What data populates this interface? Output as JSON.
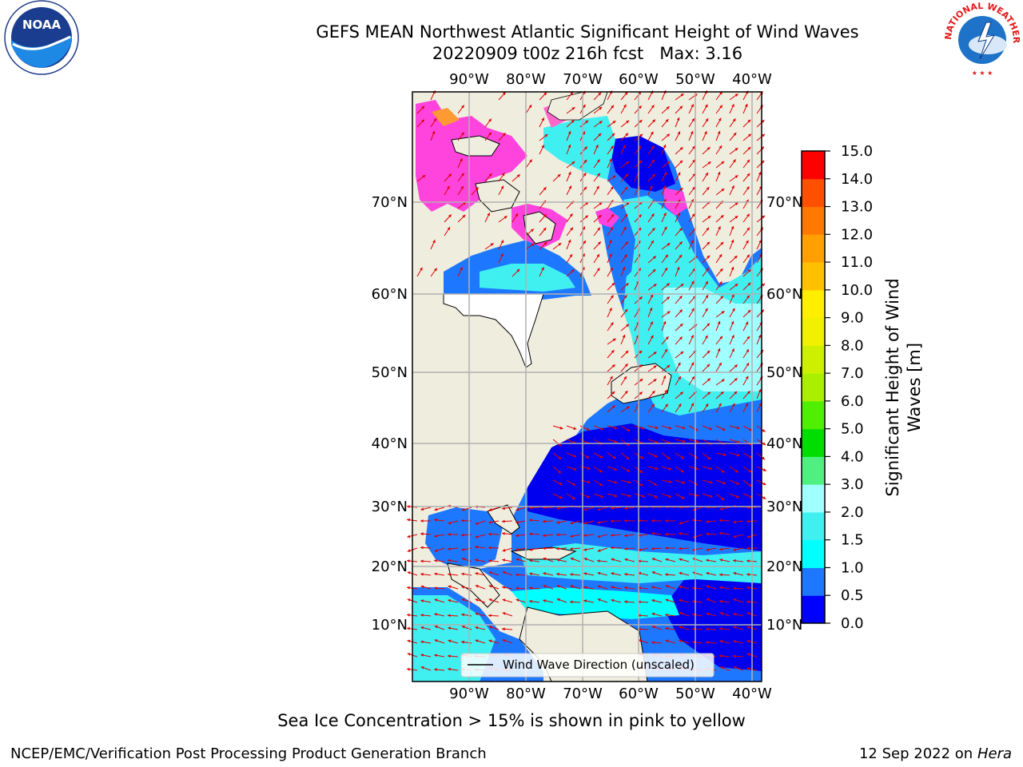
{
  "title": {
    "line1": "GEFS MEAN Northwest Atlantic Significant Height of Wind Waves",
    "line2": "20220909 t00z 216h fcst   Max: 3.16"
  },
  "map": {
    "lon_labels": [
      "90°W",
      "80°W",
      "70°W",
      "60°W",
      "50°W",
      "40°W"
    ],
    "lat_labels": [
      "70°N",
      "60°N",
      "50°N",
      "40°N",
      "30°N",
      "20°N",
      "10°N"
    ],
    "legend_label": "Wind Wave Direction (unscaled)",
    "colors": {
      "land": "#efedde",
      "grid": "#b0b0b0",
      "arrow": "#e00000"
    }
  },
  "colorbar": {
    "label_line1": "Significant Height of Wind",
    "label_line2": "Waves [m]",
    "ticks": [
      "0.0",
      "0.5",
      "1.0",
      "1.5",
      "2.0",
      "3.0",
      "4.0",
      "5.0",
      "6.0",
      "7.0",
      "8.0",
      "9.0",
      "10.0",
      "11.0",
      "12.0",
      "13.0",
      "14.0",
      "15.0"
    ],
    "colors": [
      "#0000ff",
      "#1e78ff",
      "#00ffff",
      "#40f0f0",
      "#a0ffff",
      "#50f080",
      "#00dd00",
      "#50ee00",
      "#aaee00",
      "#ccf000",
      "#f0f000",
      "#ffee00",
      "#ffc000",
      "#ffa000",
      "#ff7800",
      "#ff5000",
      "#ff0000"
    ]
  },
  "logos": {
    "noaa": "NOAA",
    "nws": "NATIONAL WEATHER SERVICE"
  },
  "footer": {
    "ice_note": "Sea Ice Concentration > 15% is shown in pink to yellow",
    "credit": "NCEP/EMC/Verification Post Processing Product Generation Branch",
    "date": "12 Sep 2022 on",
    "host": "Hera"
  }
}
